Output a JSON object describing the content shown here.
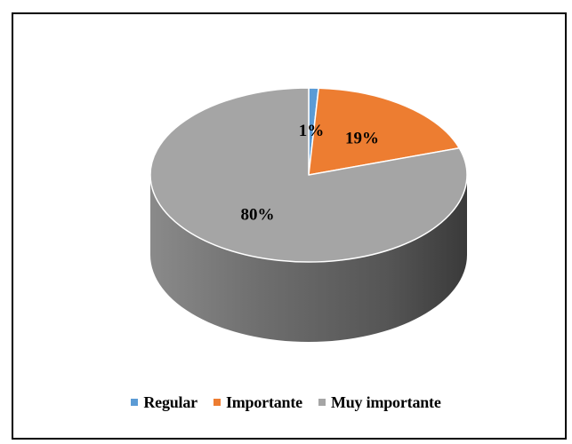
{
  "chart_data": {
    "type": "pie",
    "title": "",
    "labels": [
      "Regular",
      "Importante",
      "Muy importante"
    ],
    "values": [
      1,
      19,
      80
    ],
    "data_labels": [
      "1%",
      "19%",
      "80%"
    ],
    "colors": [
      "#5B9BD5",
      "#ED7D31",
      "#A5A5A5"
    ],
    "legend_position": "bottom",
    "style": "3d"
  }
}
